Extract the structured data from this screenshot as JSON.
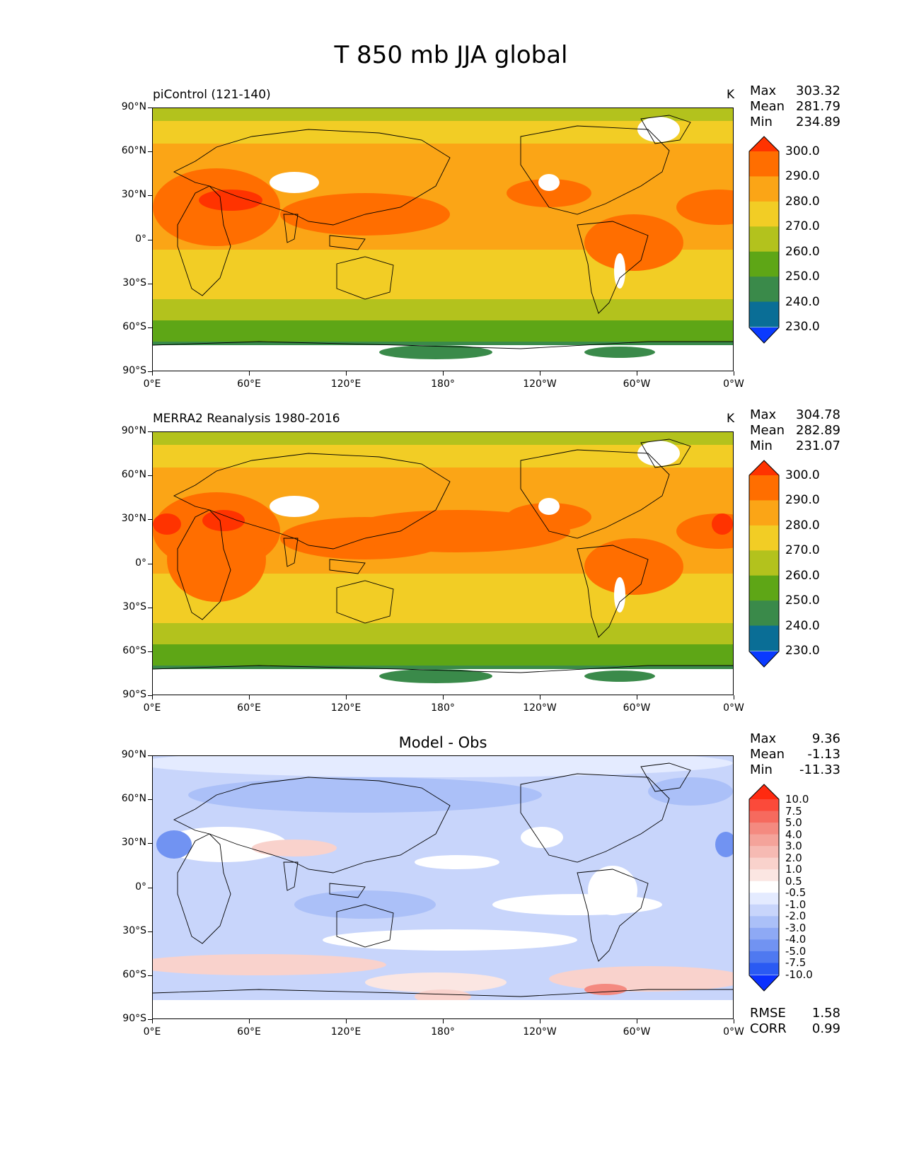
{
  "title": "T 850 mb JJA global",
  "lat_labels": [
    "90°N",
    "60°N",
    "30°N",
    "0°",
    "30°S",
    "60°S",
    "90°S"
  ],
  "lon_labels": [
    "0°E",
    "60°E",
    "120°E",
    "180°",
    "120°W",
    "60°W",
    "0°W"
  ],
  "panels": [
    {
      "title": "piControl (121-140)",
      "title_style": "left",
      "units": "K",
      "stats": [
        {
          "label": "Max",
          "value": "303.32"
        },
        {
          "label": "Mean",
          "value": "281.79"
        },
        {
          "label": "Min",
          "value": "234.89"
        }
      ],
      "colorbar": {
        "labels": [
          "300.0",
          "290.0",
          "280.0",
          "270.0",
          "260.0",
          "250.0",
          "240.0",
          "230.0"
        ],
        "colors": [
          "#ff3300",
          "#ff6e00",
          "#fba516",
          "#f2cd25",
          "#b3c21d",
          "#5ea616",
          "#3a8a4a",
          "#0a6e96",
          "#0a3aff"
        ]
      },
      "map": {
        "type": "absolute",
        "variant": "model"
      }
    },
    {
      "title": "MERRA2 Reanalysis 1980-2016",
      "title_style": "left",
      "units": "K",
      "stats": [
        {
          "label": "Max",
          "value": "304.78"
        },
        {
          "label": "Mean",
          "value": "282.89"
        },
        {
          "label": "Min",
          "value": "231.07"
        }
      ],
      "colorbar": {
        "labels": [
          "300.0",
          "290.0",
          "280.0",
          "270.0",
          "260.0",
          "250.0",
          "240.0",
          "230.0"
        ],
        "colors": [
          "#ff3300",
          "#ff6e00",
          "#fba516",
          "#f2cd25",
          "#b3c21d",
          "#5ea616",
          "#3a8a4a",
          "#0a6e96",
          "#0a3aff"
        ]
      },
      "map": {
        "type": "absolute",
        "variant": "obs"
      }
    },
    {
      "title": "Model - Obs",
      "title_style": "center",
      "units": "",
      "stats": [
        {
          "label": "Max",
          "value": "9.36"
        },
        {
          "label": "Mean",
          "value": "-1.13"
        },
        {
          "label": "Min",
          "value": "-11.33"
        }
      ],
      "extra_stats": [
        {
          "label": "RMSE",
          "value": "1.58"
        },
        {
          "label": "CORR",
          "value": "0.99"
        }
      ],
      "colorbar": {
        "labels": [
          "10.0",
          "7.5",
          "5.0",
          "4.0",
          "3.0",
          "2.0",
          "1.0",
          "0.5",
          "-0.5",
          "-1.0",
          "-2.0",
          "-3.0",
          "-4.0",
          "-5.0",
          "-7.5",
          "-10.0"
        ],
        "colors": [
          "#ff2a10",
          "#fb4a3a",
          "#f66a5e",
          "#f48a80",
          "#f4a39a",
          "#f6bab3",
          "#f9d2cc",
          "#fbe6e2",
          "#ffffff",
          "#e4ebff",
          "#c8d5fb",
          "#abc0f8",
          "#8ea9f5",
          "#7193f2",
          "#4f79f0",
          "#2a5af3",
          "#0a30ff"
        ]
      },
      "map": {
        "type": "difference"
      }
    }
  ],
  "colors": {
    "land_outline": "#000000",
    "missing": "#ffffff"
  }
}
